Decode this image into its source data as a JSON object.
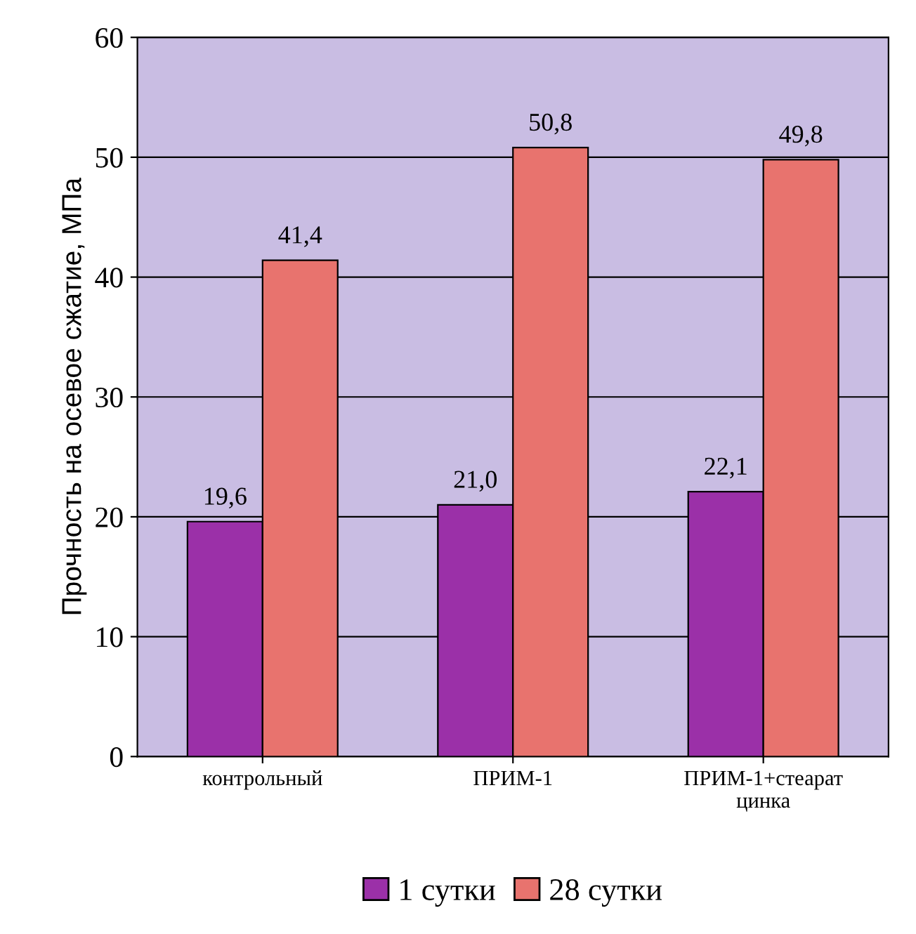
{
  "chart_data": {
    "type": "bar",
    "ylabel": "Прочность на осевое сжатие, МПа",
    "categories": [
      "контрольный",
      "ПРИМ-1",
      "ПРИМ-1+стеарат цинка"
    ],
    "series": [
      {
        "name": "1 сутки",
        "color": "#9b30a8",
        "values": [
          19.6,
          21.0,
          22.1
        ],
        "value_labels": [
          "19,6",
          "21,0",
          "22,1"
        ]
      },
      {
        "name": "28 сутки",
        "color": "#e8736e",
        "values": [
          41.4,
          50.8,
          49.8
        ],
        "value_labels": [
          "41,4",
          "50,8",
          "49,8"
        ]
      }
    ],
    "ylim": [
      0,
      60
    ],
    "yticks": [
      0,
      10,
      20,
      30,
      40,
      50,
      60
    ],
    "grid": "y",
    "legend": "bottom"
  }
}
